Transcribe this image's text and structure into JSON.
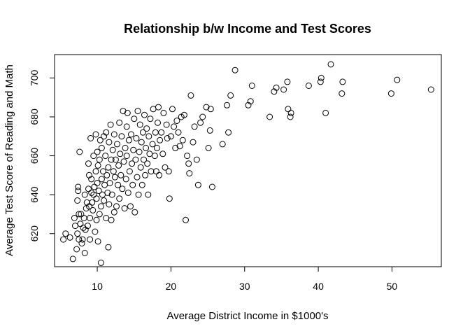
{
  "chart_data": {
    "type": "scatter",
    "title": "Relationship b/w Income and Test Scores",
    "xlabel": "Average District Income in $1000's",
    "ylabel": "Average Test Score of Reading and Math",
    "xlim": [
      4.2,
      56.7
    ],
    "ylim": [
      603,
      712
    ],
    "xticks": [
      10,
      20,
      30,
      40,
      50
    ],
    "yticks": [
      620,
      640,
      660,
      680,
      700
    ],
    "grid": false,
    "legend": "none",
    "marker": "open-circle",
    "point_color": "#000000",
    "series": [
      {
        "points": [
          [
            5.4,
            617
          ],
          [
            5.7,
            620
          ],
          [
            6.3,
            618
          ],
          [
            6.7,
            607
          ],
          [
            6.9,
            628
          ],
          [
            7.0,
            624
          ],
          [
            7.2,
            612
          ],
          [
            7.3,
            620
          ],
          [
            7.3,
            637
          ],
          [
            7.4,
            642
          ],
          [
            7.4,
            644
          ],
          [
            7.5,
            630
          ],
          [
            7.5,
            617
          ],
          [
            7.6,
            662
          ],
          [
            7.7,
            625
          ],
          [
            7.8,
            630
          ],
          [
            7.9,
            615
          ],
          [
            8.0,
            617
          ],
          [
            8.1,
            623
          ],
          [
            8.2,
            628
          ],
          [
            8.3,
            610
          ],
          [
            8.3,
            640
          ],
          [
            8.4,
            622
          ],
          [
            8.5,
            633
          ],
          [
            8.6,
            636
          ],
          [
            8.7,
            624
          ],
          [
            8.8,
            643
          ],
          [
            8.8,
            656
          ],
          [
            8.9,
            634
          ],
          [
            8.9,
            650
          ],
          [
            9.0,
            617
          ],
          [
            9.0,
            628
          ],
          [
            9.1,
            669
          ],
          [
            9.2,
            648
          ],
          [
            9.2,
            641
          ],
          [
            9.3,
            636
          ],
          [
            9.4,
            632
          ],
          [
            9.5,
            640
          ],
          [
            9.5,
            660
          ],
          [
            9.6,
            644
          ],
          [
            9.7,
            621
          ],
          [
            9.8,
            652
          ],
          [
            9.8,
            671
          ],
          [
            9.9,
            627
          ],
          [
            9.9,
            638
          ],
          [
            10.0,
            646
          ],
          [
            10.0,
            662
          ],
          [
            10.1,
            616
          ],
          [
            10.1,
            655
          ],
          [
            10.2,
            642
          ],
          [
            10.3,
            630
          ],
          [
            10.3,
            658
          ],
          [
            10.4,
            668
          ],
          [
            10.5,
            605
          ],
          [
            10.5,
            634
          ],
          [
            10.6,
            648
          ],
          [
            10.6,
            664
          ],
          [
            10.7,
            640
          ],
          [
            10.8,
            652
          ],
          [
            10.9,
            637
          ],
          [
            10.9,
            670
          ],
          [
            11.0,
            645
          ],
          [
            11.1,
            660
          ],
          [
            11.2,
            628
          ],
          [
            11.2,
            672
          ],
          [
            11.3,
            650
          ],
          [
            11.4,
            641
          ],
          [
            11.5,
            613
          ],
          [
            11.5,
            654
          ],
          [
            11.6,
            635
          ],
          [
            11.6,
            667
          ],
          [
            11.7,
            646
          ],
          [
            11.8,
            676
          ],
          [
            11.9,
            627
          ],
          [
            11.9,
            658
          ],
          [
            12.0,
            640
          ],
          [
            12.1,
            663
          ],
          [
            12.2,
            652
          ],
          [
            12.3,
            631
          ],
          [
            12.3,
            671
          ],
          [
            12.4,
            649
          ],
          [
            12.5,
            658
          ],
          [
            12.6,
            634
          ],
          [
            12.7,
            666
          ],
          [
            12.8,
            645
          ],
          [
            12.9,
            655
          ],
          [
            13.0,
            677
          ],
          [
            13.0,
            638
          ],
          [
            13.1,
            661
          ],
          [
            13.2,
            650
          ],
          [
            13.3,
            670
          ],
          [
            13.4,
            643
          ],
          [
            13.5,
            683
          ],
          [
            13.6,
            657
          ],
          [
            13.7,
            633
          ],
          [
            13.8,
            664
          ],
          [
            13.9,
            648
          ],
          [
            14.0,
            675
          ],
          [
            14.0,
            660
          ],
          [
            14.1,
            682
          ],
          [
            14.2,
            641
          ],
          [
            14.3,
            668
          ],
          [
            14.4,
            652
          ],
          [
            14.5,
            634
          ],
          [
            14.6,
            671
          ],
          [
            14.7,
            656
          ],
          [
            14.8,
            645
          ],
          [
            14.9,
            663
          ],
          [
            15.0,
            679
          ],
          [
            15.1,
            631
          ],
          [
            15.2,
            658
          ],
          [
            15.3,
            669
          ],
          [
            15.4,
            649
          ],
          [
            15.5,
            683
          ],
          [
            15.6,
            640
          ],
          [
            15.7,
            662
          ],
          [
            15.8,
            676
          ],
          [
            15.9,
            654
          ],
          [
            16.0,
            667
          ],
          [
            16.1,
            645
          ],
          [
            16.2,
            672
          ],
          [
            16.3,
            658
          ],
          [
            16.4,
            681
          ],
          [
            16.5,
            650
          ],
          [
            16.6,
            664
          ],
          [
            16.7,
            674
          ],
          [
            16.8,
            656
          ],
          [
            16.9,
            640
          ],
          [
            17.0,
            670
          ],
          [
            17.1,
            661
          ],
          [
            17.2,
            679
          ],
          [
            17.3,
            652
          ],
          [
            17.5,
            666
          ],
          [
            17.6,
            684
          ],
          [
            17.8,
            660
          ],
          [
            17.9,
            672
          ],
          [
            18.0,
            652
          ],
          [
            18.1,
            664
          ],
          [
            18.2,
            677
          ],
          [
            18.3,
            685
          ],
          [
            18.4,
            650
          ],
          [
            18.5,
            668
          ],
          [
            18.7,
            672
          ],
          [
            18.9,
            661
          ],
          [
            19.0,
            682
          ],
          [
            19.2,
            654
          ],
          [
            19.4,
            676
          ],
          [
            19.5,
            669
          ],
          [
            19.7,
            652
          ],
          [
            19.8,
            638
          ],
          [
            20.0,
            670
          ],
          [
            20.2,
            684
          ],
          [
            20.4,
            675
          ],
          [
            20.6,
            664
          ],
          [
            20.8,
            678
          ],
          [
            21.0,
            672
          ],
          [
            21.2,
            665
          ],
          [
            21.4,
            680
          ],
          [
            21.6,
            668
          ],
          [
            21.8,
            681
          ],
          [
            22.0,
            627
          ],
          [
            22.2,
            660
          ],
          [
            22.4,
            656
          ],
          [
            22.5,
            651
          ],
          [
            22.7,
            691
          ],
          [
            23.0,
            667
          ],
          [
            23.2,
            675
          ],
          [
            23.5,
            658
          ],
          [
            23.7,
            645
          ],
          [
            24.0,
            677
          ],
          [
            24.3,
            680
          ],
          [
            24.8,
            685
          ],
          [
            25.1,
            664
          ],
          [
            25.3,
            673
          ],
          [
            25.4,
            684
          ],
          [
            25.6,
            644
          ],
          [
            27.0,
            666
          ],
          [
            27.6,
            686
          ],
          [
            27.8,
            672
          ],
          [
            28.1,
            691
          ],
          [
            28.7,
            704
          ],
          [
            30.5,
            686
          ],
          [
            30.8,
            688
          ],
          [
            31.0,
            696
          ],
          [
            33.4,
            680
          ],
          [
            34.0,
            693
          ],
          [
            34.3,
            695
          ],
          [
            35.3,
            694
          ],
          [
            35.8,
            698
          ],
          [
            35.9,
            684
          ],
          [
            36.2,
            680
          ],
          [
            36.3,
            682
          ],
          [
            38.7,
            696
          ],
          [
            40.3,
            698
          ],
          [
            40.4,
            700
          ],
          [
            41.0,
            682
          ],
          [
            41.7,
            707
          ],
          [
            43.2,
            692
          ],
          [
            43.3,
            698
          ],
          [
            49.9,
            692
          ],
          [
            50.7,
            699
          ],
          [
            55.3,
            694
          ]
        ]
      }
    ]
  }
}
